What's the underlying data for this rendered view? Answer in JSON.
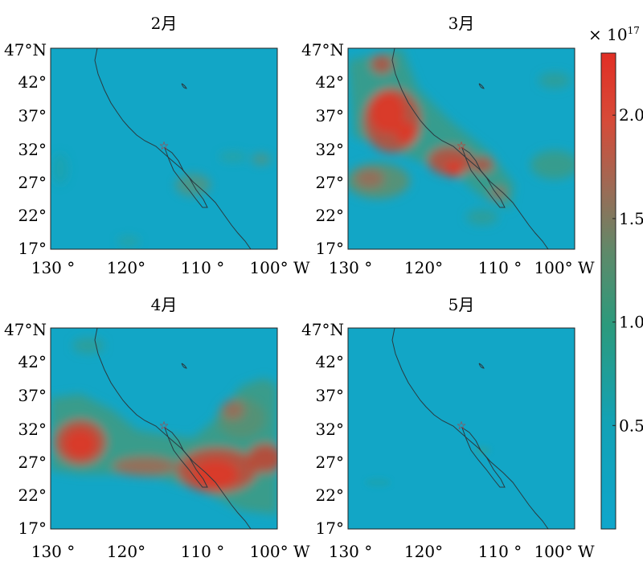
{
  "figure": {
    "panels": [
      {
        "title": "2月",
        "lat_labels": [
          "47°N",
          "42°",
          "37°",
          "32°",
          "27°",
          "22°",
          "17°"
        ],
        "lon_labels": [
          "130 °",
          "120°",
          "110 °",
          "100° W"
        ]
      },
      {
        "title": "3月",
        "lat_labels": [
          "47°N",
          "42°",
          "37°",
          "32°",
          "27°",
          "22°",
          "17°"
        ],
        "lon_labels": [
          "130 °",
          "120°",
          "110 °",
          "100° W"
        ]
      },
      {
        "title": "4月",
        "lat_labels": [
          "47°N",
          "42°",
          "37°",
          "32°",
          "27°",
          "22°",
          "17°"
        ],
        "lon_labels": [
          "130 °",
          "120°",
          "110 °",
          "100° W"
        ]
      },
      {
        "title": "5月",
        "lat_labels": [
          "47°N",
          "42°",
          "37°",
          "32°",
          "27°",
          "22°",
          "17°"
        ],
        "lon_labels": [
          "130 °",
          "120°",
          "110 °",
          "100° W"
        ]
      }
    ],
    "colorbar": {
      "exponent_label": "× 10",
      "exponent_power": "17",
      "tick_labels": [
        "2.0",
        "1.5",
        "1.0",
        "0.5"
      ],
      "tick_values": [
        2.0,
        1.5,
        1.0,
        0.5
      ],
      "vmin": 0,
      "vmax": 2.3,
      "colors": [
        "#0fa6cc",
        "#1d9aa8",
        "#2c9a7c",
        "#5e8a6a",
        "#9e6a55",
        "#d74a38",
        "#e12f25"
      ]
    },
    "marker_color": "#e0211a"
  }
}
